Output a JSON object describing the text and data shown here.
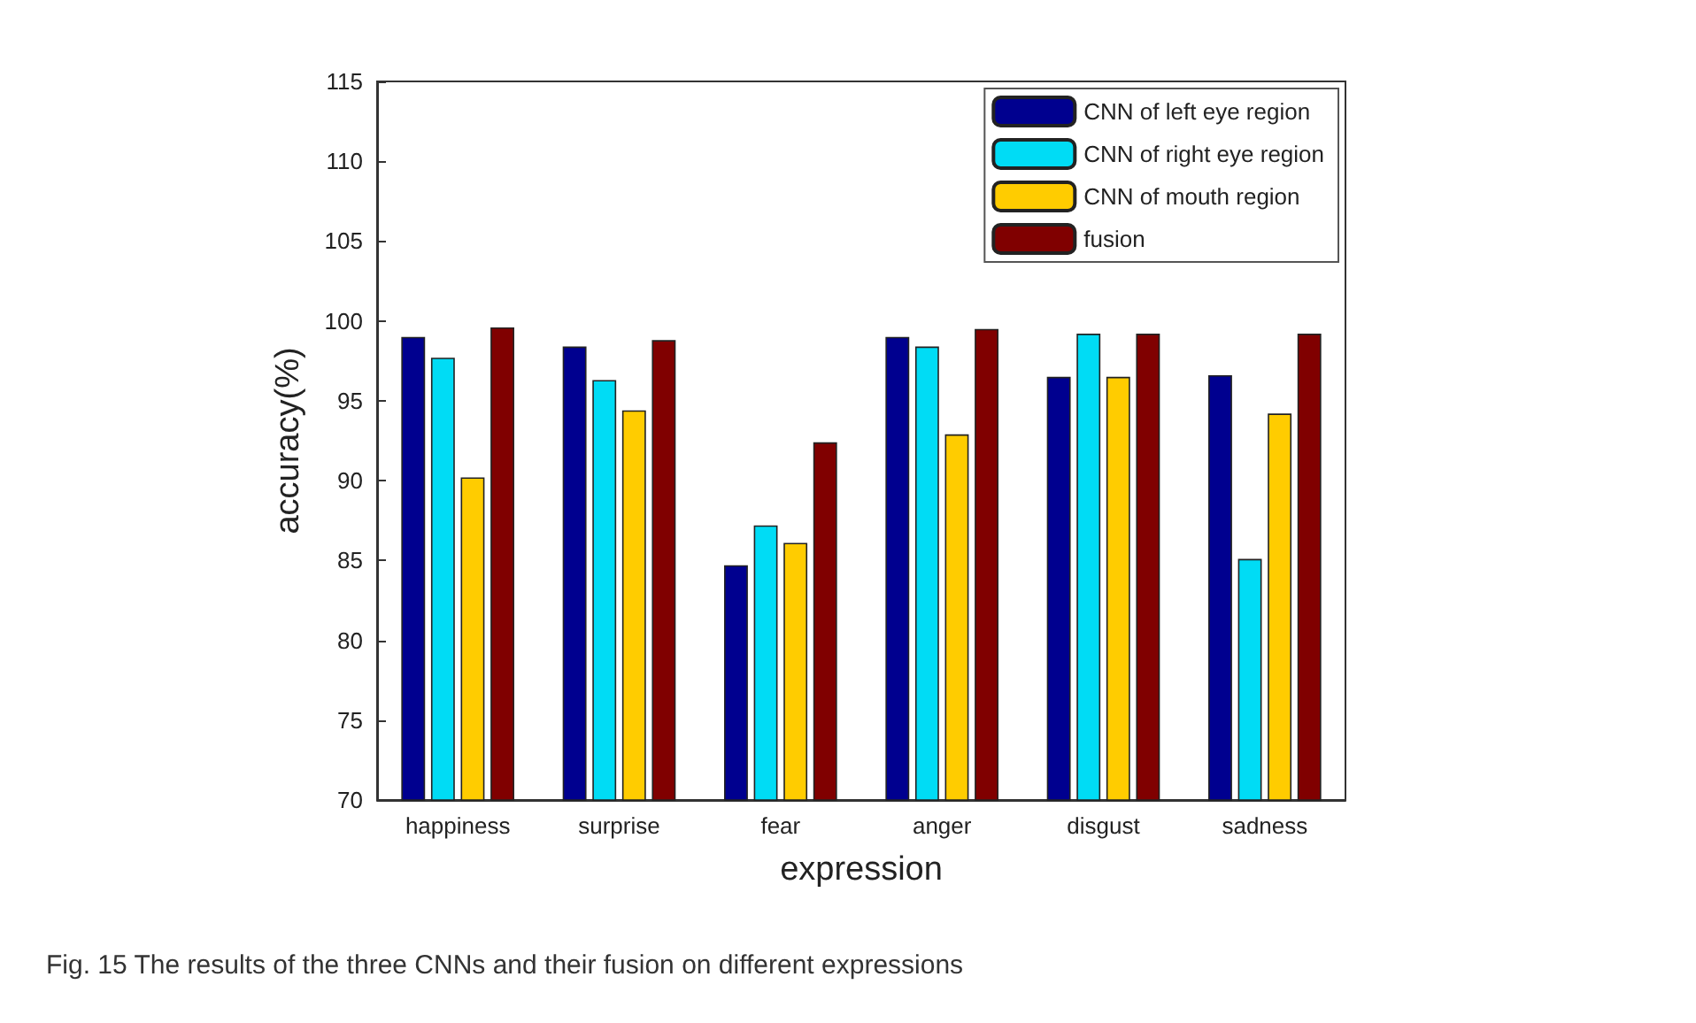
{
  "chart_data": {
    "type": "bar",
    "xlabel": "expression",
    "ylabel": "accuracy(%)",
    "categories": [
      "happiness",
      "surprise",
      "fear",
      "anger",
      "disgust",
      "sadness"
    ],
    "series": [
      {
        "name": "CNN of left eye region",
        "color": "#00008f",
        "values": [
          99.0,
          98.4,
          84.7,
          99.0,
          96.5,
          96.6
        ]
      },
      {
        "name": "CNN of right eye region",
        "color": "#00dcf5",
        "values": [
          97.7,
          96.3,
          87.2,
          98.4,
          99.2,
          85.1
        ]
      },
      {
        "name": "CNN of mouth region",
        "color": "#ffcc00",
        "values": [
          90.2,
          94.4,
          86.1,
          92.9,
          96.5,
          94.2
        ]
      },
      {
        "name": "fusion",
        "color": "#800000",
        "values": [
          99.6,
          98.8,
          92.4,
          99.5,
          99.2,
          99.2
        ]
      }
    ],
    "ylim": [
      70,
      115
    ],
    "yticks": [
      70,
      75,
      80,
      85,
      90,
      95,
      100,
      105,
      110,
      115
    ],
    "grid": false,
    "legend": "top right",
    "annotations": [
      "Fig. 15 The results of the three CNNs and their fusion on different expressions"
    ]
  }
}
